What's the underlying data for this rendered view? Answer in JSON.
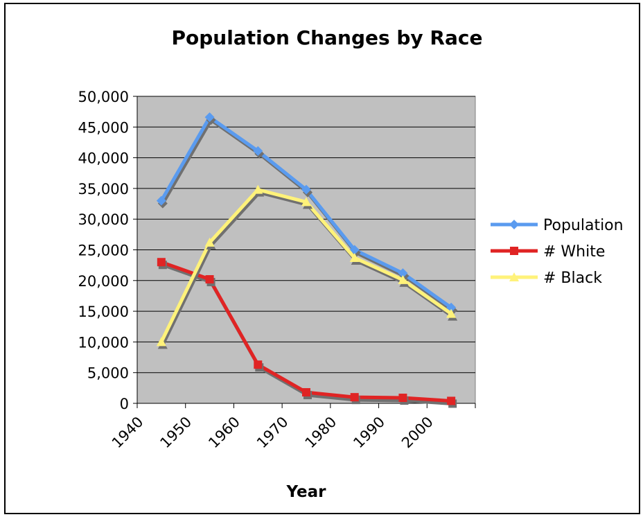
{
  "chart_data": {
    "type": "line",
    "title": "Population Changes by Race",
    "xlabel": "Year",
    "ylabel": "",
    "categories": [
      "1940",
      "1950",
      "1960",
      "1970",
      "1980",
      "1990",
      "2000"
    ],
    "y_tick_labels": [
      "0",
      "5,000",
      "10,000",
      "15,000",
      "20,000",
      "25,000",
      "30,000",
      "35,000",
      "40,000",
      "45,000",
      "50,000"
    ],
    "ylim": [
      0,
      50000
    ],
    "y_step": 5000,
    "grid": true,
    "legend_position": "right",
    "plot_background": "#c0c0c0",
    "series": [
      {
        "name": "Population",
        "color": "#5a9bef",
        "marker": "diamond",
        "values": [
          33000,
          46600,
          41100,
          34800,
          25000,
          21200,
          15600
        ]
      },
      {
        "name": "# White",
        "color": "#e02424",
        "marker": "square",
        "values": [
          23000,
          20200,
          6300,
          1800,
          1000,
          900,
          400
        ]
      },
      {
        "name": "# Black",
        "color": "#fff27a",
        "marker": "triangle",
        "values": [
          10000,
          26200,
          34800,
          32800,
          23700,
          20100,
          14600
        ]
      }
    ]
  }
}
